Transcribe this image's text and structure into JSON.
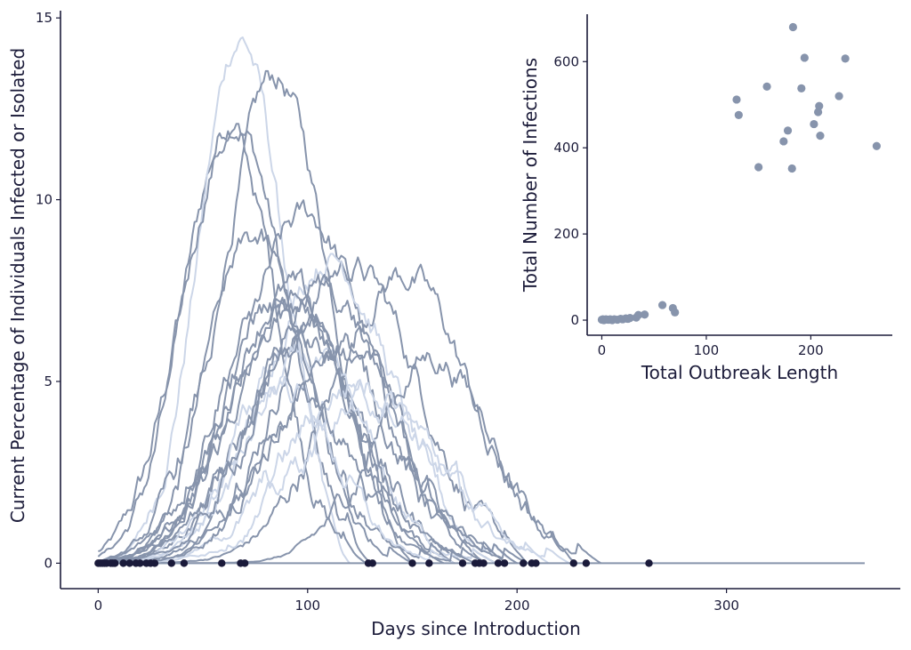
{
  "chart_data": [
    {
      "type": "line",
      "xlabel": "Days since Introduction",
      "ylabel": "Current Percentage of Individuals Infected or Isolated",
      "xlim": [
        -18,
        383
      ],
      "ylim": [
        -0.7,
        15.2
      ],
      "xticks": [
        0,
        100,
        200,
        300
      ],
      "yticks": [
        0,
        5,
        10,
        15
      ],
      "colors": {
        "line_dark": "#8794ac",
        "line_light": "#ccd6e8",
        "end_point": "#1a1a3a",
        "axis": "#1c1c3a"
      },
      "series": [
        {
          "peak_day": 65,
          "peak_value": 12.3,
          "width": 24,
          "end_day": 130,
          "shade": "dark"
        },
        {
          "peak_day": 68,
          "peak_value": 14.5,
          "width": 20,
          "end_day": 120,
          "shade": "light"
        },
        {
          "peak_day": 85,
          "peak_value": 13.3,
          "width": 25,
          "end_day": 150,
          "shade": "dark"
        },
        {
          "peak_day": 63,
          "peak_value": 11.8,
          "width": 22,
          "end_day": 128,
          "shade": "dark"
        },
        {
          "peak_day": 100,
          "peak_value": 9.5,
          "width": 30,
          "end_day": 185,
          "shade": "dark"
        },
        {
          "peak_day": 120,
          "peak_value": 8.2,
          "width": 33,
          "end_day": 205,
          "shade": "dark"
        },
        {
          "peak_day": 145,
          "peak_value": 8.0,
          "width": 32,
          "end_day": 228,
          "shade": "dark"
        },
        {
          "peak_day": 110,
          "peak_value": 8.5,
          "width": 30,
          "end_day": 200,
          "shade": "light"
        },
        {
          "peak_day": 160,
          "peak_value": 5.7,
          "width": 28,
          "end_day": 240,
          "shade": "dark"
        },
        {
          "peak_day": 90,
          "peak_value": 7.5,
          "width": 28,
          "end_day": 175,
          "shade": "dark"
        },
        {
          "peak_day": 95,
          "peak_value": 6.9,
          "width": 30,
          "end_day": 190,
          "shade": "dark"
        },
        {
          "peak_day": 80,
          "peak_value": 7.0,
          "width": 26,
          "end_day": 165,
          "shade": "dark"
        },
        {
          "peak_day": 105,
          "peak_value": 6.5,
          "width": 32,
          "end_day": 205,
          "shade": "dark"
        },
        {
          "peak_day": 100,
          "peak_value": 5.5,
          "width": 28,
          "end_day": 190,
          "shade": "light"
        },
        {
          "peak_day": 92,
          "peak_value": 7.2,
          "width": 27,
          "end_day": 170,
          "shade": "dark"
        },
        {
          "peak_day": 75,
          "peak_value": 8.8,
          "width": 24,
          "end_day": 150,
          "shade": "dark"
        },
        {
          "peak_day": 115,
          "peak_value": 6.0,
          "width": 30,
          "end_day": 200,
          "shade": "dark"
        },
        {
          "peak_day": 125,
          "peak_value": 5.0,
          "width": 34,
          "end_day": 215,
          "shade": "light"
        },
        {
          "peak_day": 88,
          "peak_value": 5.0,
          "width": 25,
          "end_day": 170,
          "shade": "light"
        },
        {
          "peak_day": 108,
          "peak_value": 7.6,
          "width": 30,
          "end_day": 195,
          "shade": "dark"
        },
        {
          "peak_day": 97,
          "peak_value": 6.1,
          "width": 29,
          "end_day": 185,
          "shade": "dark"
        },
        {
          "peak_day": 130,
          "peak_value": 4.5,
          "width": 34,
          "end_day": 225,
          "shade": "light"
        },
        {
          "peak_day": 98,
          "peak_value": 4.5,
          "width": 24,
          "end_day": 180,
          "shade": "dark"
        }
      ],
      "baseline": {
        "start": 0,
        "end": 366,
        "value": 0
      },
      "end_points": [
        0,
        1,
        2,
        3,
        4,
        6,
        7,
        8,
        12,
        15,
        18,
        20,
        23,
        25,
        27,
        35,
        41,
        59,
        68,
        70,
        129,
        131,
        150,
        158,
        174,
        180,
        182,
        184,
        191,
        194,
        203,
        207,
        209,
        227,
        233,
        263
      ]
    },
    {
      "type": "scatter",
      "xlabel": "Total Outbreak Length",
      "ylabel": "Total Number of Infections",
      "xlim": [
        -14,
        278
      ],
      "ylim": [
        -35,
        710
      ],
      "xticks": [
        0,
        100,
        200
      ],
      "yticks": [
        0,
        200,
        400,
        600
      ],
      "color": "#8794ac",
      "points": [
        [
          0,
          1
        ],
        [
          1,
          2
        ],
        [
          2,
          0
        ],
        [
          3,
          1
        ],
        [
          4,
          2
        ],
        [
          6,
          1
        ],
        [
          7,
          1
        ],
        [
          8,
          2
        ],
        [
          10,
          0
        ],
        [
          12,
          2
        ],
        [
          15,
          1
        ],
        [
          18,
          3
        ],
        [
          20,
          2
        ],
        [
          23,
          4
        ],
        [
          25,
          3
        ],
        [
          27,
          5
        ],
        [
          33,
          6
        ],
        [
          35,
          12
        ],
        [
          41,
          13
        ],
        [
          58,
          35
        ],
        [
          68,
          28
        ],
        [
          70,
          18
        ],
        [
          129,
          512
        ],
        [
          131,
          476
        ],
        [
          150,
          355
        ],
        [
          158,
          542
        ],
        [
          174,
          415
        ],
        [
          178,
          440
        ],
        [
          182,
          352
        ],
        [
          183,
          680
        ],
        [
          191,
          538
        ],
        [
          194,
          609
        ],
        [
          203,
          455
        ],
        [
          207,
          483
        ],
        [
          208,
          497
        ],
        [
          209,
          428
        ],
        [
          227,
          520
        ],
        [
          233,
          607
        ],
        [
          263,
          404
        ]
      ]
    }
  ]
}
